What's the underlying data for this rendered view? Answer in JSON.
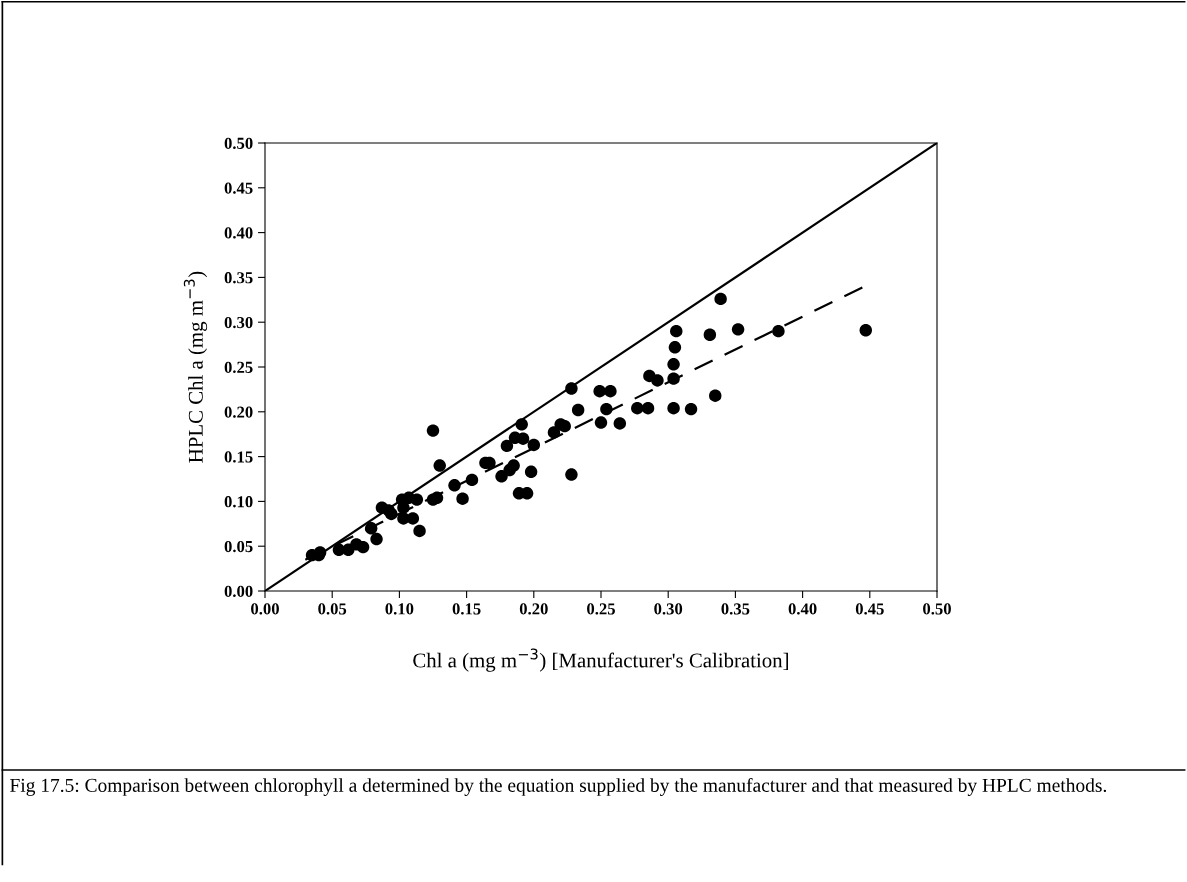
{
  "chart_data": {
    "type": "scatter",
    "xlabel": "Chl a (mg m$^{−3}$) [Manufacturer's Calibration]",
    "ylabel": "HPLC Chl a (mg m$^{−3}$)",
    "annotations": [
      "Fig 17.5: Comparison between chlorophyll a determined by the equation supplied by the manufacturer and that measured by HPLC methods."
    ],
    "xlim": [
      0,
      0.5
    ],
    "ylim": [
      0,
      0.5
    ],
    "xticks": [
      {
        "value": 0,
        "label": "0.00"
      },
      {
        "value": 0.05,
        "label": "0.05"
      },
      {
        "value": 0.1,
        "label": "0.10"
      },
      {
        "value": 0.15,
        "label": "0.15"
      },
      {
        "value": 0.2,
        "label": "0.20"
      },
      {
        "value": 0.25,
        "label": "0.25"
      },
      {
        "value": 0.3,
        "label": "0.30"
      },
      {
        "value": 0.35,
        "label": "0.35"
      },
      {
        "value": 0.4,
        "label": "0.40"
      },
      {
        "value": 0.45,
        "label": "0.45"
      },
      {
        "value": 0.5,
        "label": "0.50"
      }
    ],
    "yticks": [
      {
        "value": 0,
        "label": "0.00"
      },
      {
        "value": 0.05,
        "label": "0.05"
      },
      {
        "value": 0.1,
        "label": "0.10"
      },
      {
        "value": 0.15,
        "label": "0.15"
      },
      {
        "value": 0.2,
        "label": "0.20"
      },
      {
        "value": 0.25,
        "label": "0.25"
      },
      {
        "value": 0.3,
        "label": "0.30"
      },
      {
        "value": 0.35,
        "label": "0.35"
      },
      {
        "value": 0.4,
        "label": "0.40"
      },
      {
        "value": 0.45,
        "label": "0.45"
      },
      {
        "value": 0.5,
        "label": "0.50"
      }
    ],
    "grid": false,
    "legend": false,
    "series": [
      {
        "color": "#000000",
        "marker": "circle",
        "x": [
          0.035,
          0.04,
          0.041,
          0.055,
          0.062,
          0.068,
          0.073,
          0.079,
          0.083,
          0.087,
          0.092,
          0.094,
          0.103,
          0.102,
          0.107,
          0.103,
          0.11,
          0.113,
          0.115,
          0.125,
          0.125,
          0.128,
          0.13,
          0.141,
          0.147,
          0.154,
          0.164,
          0.167,
          0.176,
          0.18,
          0.185,
          0.182,
          0.186,
          0.192,
          0.191,
          0.2,
          0.198,
          0.189,
          0.195,
          0.215,
          0.22,
          0.223,
          0.228,
          0.249,
          0.257,
          0.233,
          0.254,
          0.25,
          0.264,
          0.277,
          0.285,
          0.304,
          0.317,
          0.335,
          0.286,
          0.292,
          0.304,
          0.304,
          0.305,
          0.306,
          0.331,
          0.352,
          0.382,
          0.447,
          0.339,
          0.228
        ],
        "values": [
          0.04,
          0.04,
          0.043,
          0.046,
          0.046,
          0.052,
          0.049,
          0.07,
          0.058,
          0.093,
          0.09,
          0.086,
          0.093,
          0.102,
          0.104,
          0.081,
          0.081,
          0.102,
          0.067,
          0.179,
          0.102,
          0.104,
          0.14,
          0.118,
          0.103,
          0.124,
          0.143,
          0.143,
          0.128,
          0.162,
          0.14,
          0.135,
          0.171,
          0.17,
          0.186,
          0.163,
          0.133,
          0.109,
          0.109,
          0.177,
          0.186,
          0.184,
          0.226,
          0.223,
          0.223,
          0.202,
          0.203,
          0.188,
          0.187,
          0.204,
          0.204,
          0.204,
          0.203,
          0.218,
          0.24,
          0.235,
          0.237,
          0.253,
          0.272,
          0.29,
          0.286,
          0.292,
          0.29,
          0.291,
          0.326,
          0.13
        ]
      },
      {
        "type": "line",
        "color": "#000000",
        "line_style": "solid",
        "x": [
          0,
          0.5
        ],
        "values": [
          0,
          0.5
        ]
      },
      {
        "type": "line",
        "color": "#000000",
        "line_style": "dashed",
        "x": [
          0.03,
          0.446
        ],
        "values": [
          0.035,
          0.34
        ]
      }
    ]
  }
}
